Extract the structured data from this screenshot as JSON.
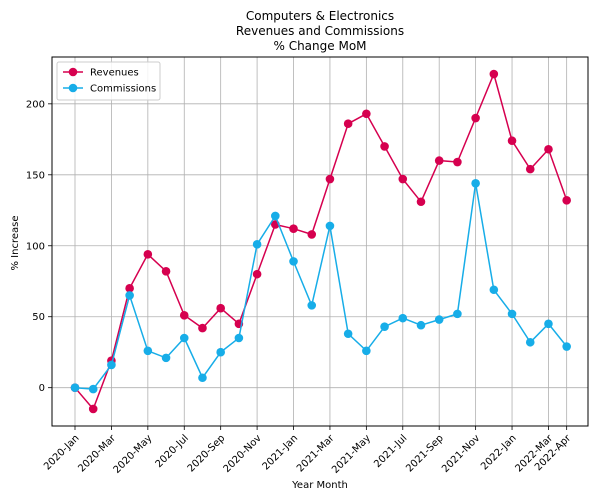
{
  "chart_data": {
    "type": "line",
    "title_lines": [
      "Computers & Electronics",
      "Revenues and Commissions",
      "% Change MoM"
    ],
    "xlabel": "Year Month",
    "ylabel": "% Increase",
    "x": [
      "2020-Jan",
      "2020-Feb",
      "2020-Mar",
      "2020-Apr",
      "2020-May",
      "2020-Jun",
      "2020-Jul",
      "2020-Aug",
      "2020-Sep",
      "2020-Oct",
      "2020-Nov",
      "2020-Dec",
      "2021-Jan",
      "2021-Feb",
      "2021-Mar",
      "2021-Apr",
      "2021-May",
      "2021-Jun",
      "2021-Jul",
      "2021-Aug",
      "2021-Sep",
      "2021-Oct",
      "2021-Nov",
      "2021-Dec",
      "2022-Jan",
      "2022-Feb",
      "2022-Mar",
      "2022-Apr"
    ],
    "xticks": [
      "2020-Jan",
      "2020-Mar",
      "2020-May",
      "2020-Jul",
      "2020-Sep",
      "2020-Nov",
      "2021-Jan",
      "2021-Mar",
      "2021-May",
      "2021-Jul",
      "2021-Sep",
      "2021-Nov",
      "2022-Jan",
      "2022-Mar",
      "2022-Apr"
    ],
    "yticks": [
      0,
      50,
      100,
      150,
      200
    ],
    "ylim": [
      -27,
      233
    ],
    "grid": true,
    "legend_position": "top-left",
    "series": [
      {
        "name": "Revenues",
        "color": "#d6004f",
        "values": [
          0,
          -15,
          19,
          70,
          94,
          82,
          51,
          42,
          56,
          45,
          80,
          115,
          112,
          108,
          147,
          186,
          193,
          170,
          147,
          131,
          160,
          159,
          190,
          221,
          174,
          154,
          168,
          132
        ]
      },
      {
        "name": "Commissions",
        "color": "#17ade8",
        "values": [
          0,
          -1,
          16,
          65,
          26,
          21,
          35,
          7,
          25,
          35,
          101,
          121,
          89,
          58,
          114,
          38,
          26,
          43,
          49,
          44,
          48,
          52,
          144,
          69,
          52,
          32,
          45,
          29
        ]
      }
    ]
  }
}
